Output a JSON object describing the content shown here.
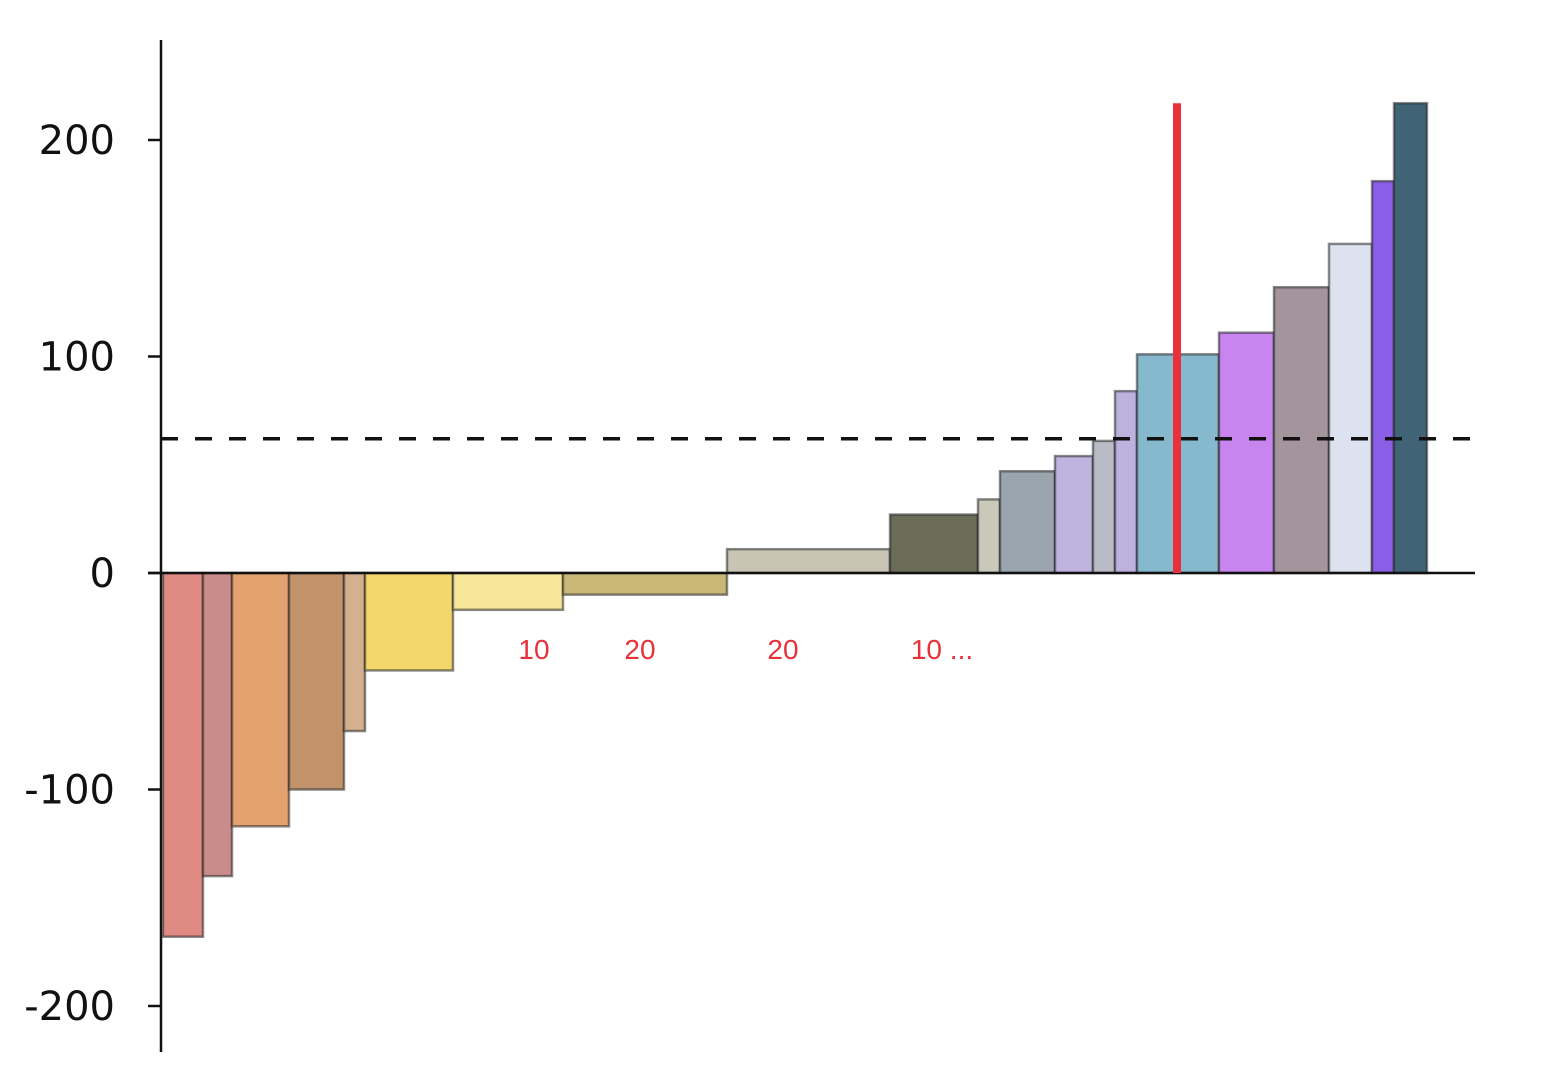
{
  "chart_data": {
    "type": "bar",
    "variant": "variable-width",
    "title": "",
    "xlabel": "",
    "ylabel": "",
    "ylim": [
      -220,
      245
    ],
    "xlim": [
      0,
      1312
    ],
    "y_ticks": [
      200,
      100,
      0,
      -100,
      -200
    ],
    "y_tick_labels": [
      "200",
      "100",
      "0",
      "-100",
      "-200"
    ],
    "grid": false,
    "bars": [
      {
        "width": 40,
        "value": -168,
        "color": "#e08a84"
      },
      {
        "width": 29,
        "value": -140,
        "color": "#c98c8a"
      },
      {
        "width": 57,
        "value": -117,
        "color": "#e4a26e"
      },
      {
        "width": 55,
        "value": -100,
        "color": "#c2926a"
      },
      {
        "width": 21,
        "value": -73,
        "color": "#d4b08e"
      },
      {
        "width": 88,
        "value": -45,
        "color": "#f2d76a"
      },
      {
        "width": 110,
        "value": -17,
        "color": "#f7e79a"
      },
      {
        "width": 164,
        "value": -10,
        "color": "#c9b877"
      },
      {
        "width": 163,
        "value": 11,
        "color": "#c8c5b5"
      },
      {
        "width": 88,
        "value": 27,
        "color": "#6b6c58"
      },
      {
        "width": 22,
        "value": 34,
        "color": "#c8c9b9"
      },
      {
        "width": 55,
        "value": 47,
        "color": "#9aa5ad"
      },
      {
        "width": 38,
        "value": 54,
        "color": "#bfb3e0"
      },
      {
        "width": 22,
        "value": 61,
        "color": "#b9bcc6"
      },
      {
        "width": 22,
        "value": 84,
        "color": "#bdb1de"
      },
      {
        "width": 82,
        "value": 101,
        "color": "#86b8ce"
      },
      {
        "width": 55,
        "value": 111,
        "color": "#c885f0"
      },
      {
        "width": 55,
        "value": 132,
        "color": "#a4959c"
      },
      {
        "width": 43,
        "value": 152,
        "color": "#dce2f0"
      },
      {
        "width": 22,
        "value": 181,
        "color": "#8b5ee8"
      },
      {
        "width": 33,
        "value": 217,
        "color": "#406475"
      }
    ],
    "reference_line": {
      "value": 62,
      "style": "dashed",
      "color": "#111111"
    },
    "marker_line": {
      "x": 1014,
      "from": 0,
      "to": 217,
      "color": "#e8313a"
    },
    "annotations": [
      {
        "text": "10",
        "x": 371
      },
      {
        "text": "20",
        "x": 477
      },
      {
        "text": "20",
        "x": 620
      },
      {
        "text": "10 ...",
        "x": 779
      }
    ],
    "annotation_y": -35
  }
}
